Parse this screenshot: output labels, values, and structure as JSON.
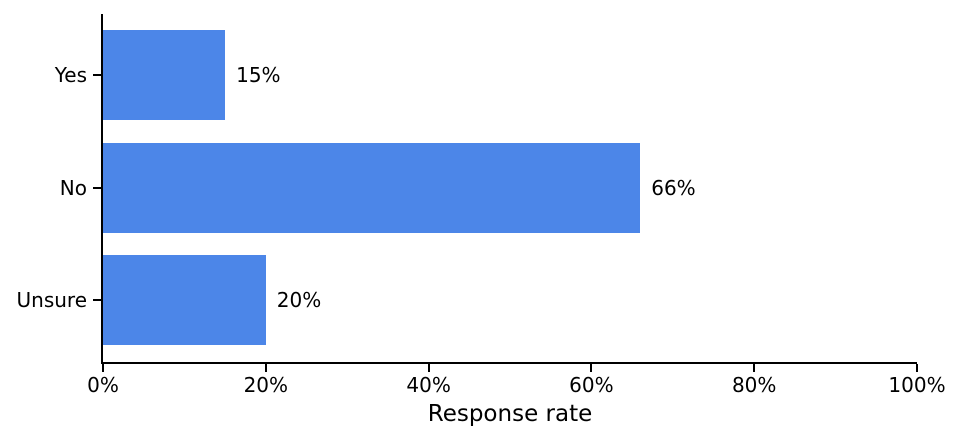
{
  "chart_data": {
    "type": "bar",
    "orientation": "horizontal",
    "title": "",
    "xlabel": "Response rate",
    "ylabel": "",
    "categories": [
      "Yes",
      "No",
      "Unsure"
    ],
    "values": [
      15,
      66,
      20
    ],
    "value_labels": [
      "15%",
      "66%",
      "20%"
    ],
    "x_tick_values": [
      0,
      20,
      40,
      60,
      80,
      100
    ],
    "x_tick_labels": [
      "0%",
      "20%",
      "40%",
      "60%",
      "80%",
      "100%"
    ],
    "xlim": [
      0,
      100
    ],
    "grid": false,
    "legend": false,
    "bar_color": "#4c86e8",
    "axis_color": "#000000",
    "text_color": "#000000",
    "background_color": "#ffffff"
  }
}
